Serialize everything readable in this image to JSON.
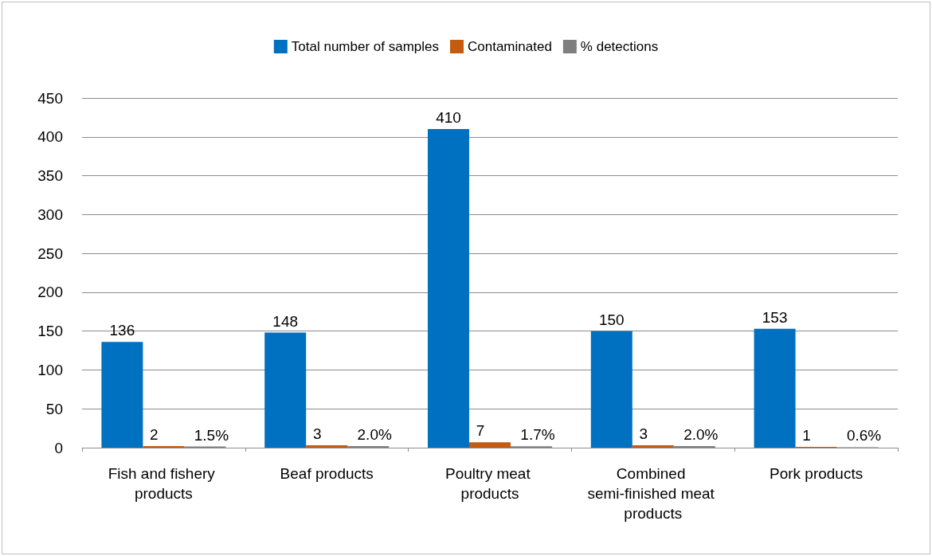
{
  "chart_data": {
    "type": "bar",
    "categories": [
      "Fish and fishery products",
      "Beaf products",
      "Poultry meat products",
      "Combined semi-finished meat products",
      "Pork products"
    ],
    "series": [
      {
        "name": "Total number of samples",
        "color": "#0070c0",
        "values": [
          136,
          148,
          410,
          150,
          153
        ],
        "value_labels": [
          "136",
          "148",
          "410",
          "150",
          "153"
        ]
      },
      {
        "name": "Contaminated",
        "color": "#c55a11",
        "values": [
          2,
          3,
          7,
          3,
          1
        ],
        "value_labels": [
          "2",
          "3",
          "7",
          "3",
          "1"
        ]
      },
      {
        "name": "% detections",
        "color": "#7f7f7f",
        "values": [
          1.5,
          2.0,
          1.7,
          2.0,
          0.6
        ],
        "value_labels": [
          "1.5%",
          "2.0%",
          "1.7%",
          "2.0%",
          "0.6%"
        ]
      }
    ],
    "ylim": [
      0,
      450
    ],
    "yticks": [
      0,
      50,
      100,
      150,
      200,
      250,
      300,
      350,
      400,
      450
    ],
    "grid": "y",
    "legend": "top"
  }
}
